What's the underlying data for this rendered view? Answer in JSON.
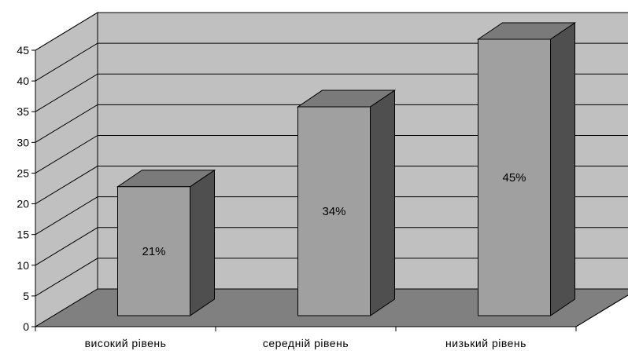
{
  "chart_data": {
    "type": "bar",
    "style": "3d",
    "categories": [
      "високий рівень",
      "середній рівень",
      "низький рівень"
    ],
    "values": [
      21,
      34,
      45
    ],
    "data_labels": [
      "21%",
      "34%",
      "45%"
    ],
    "yticks": [
      "0",
      "5",
      "10",
      "15",
      "20",
      "25",
      "30",
      "35",
      "40",
      "45"
    ],
    "ylim": [
      0,
      45
    ],
    "grid": true,
    "legend": "none",
    "colors": {
      "wall": "#c0c0c0",
      "floor": "#808080",
      "bar_front": "#a0a0a0",
      "bar_top": "#7a7a7a",
      "bar_side": "#4f4f4f",
      "gridline": "#000000"
    }
  }
}
